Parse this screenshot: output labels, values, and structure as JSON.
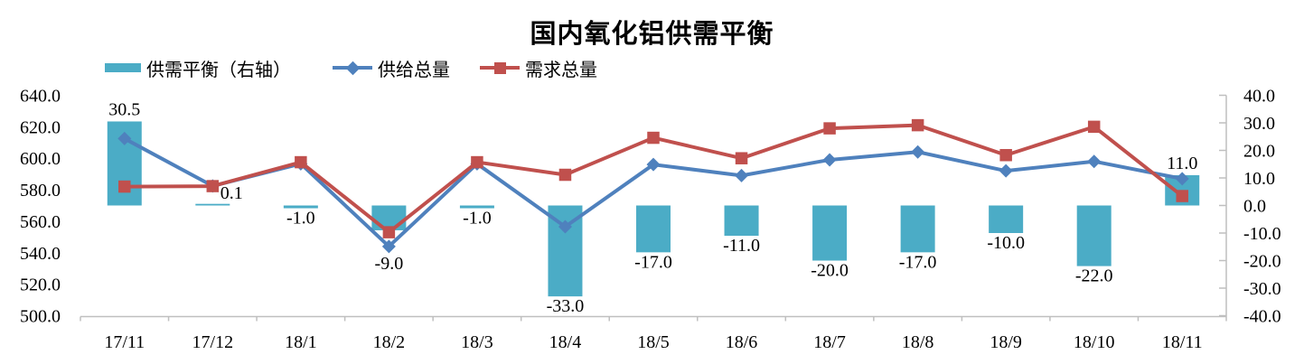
{
  "chart_data": {
    "type": "bar",
    "subtype": "bar+line combo, dual axis",
    "title": "国内氧化铝供需平衡",
    "categories": [
      "17/11",
      "17/12",
      "18/1",
      "18/2",
      "18/3",
      "18/4",
      "18/5",
      "18/6",
      "18/7",
      "18/8",
      "18/9",
      "18/10",
      "18/11"
    ],
    "series": [
      {
        "name": "供需平衡（右轴）",
        "type": "bar",
        "axis": "right",
        "color": "#4BACC6",
        "values": [
          30.5,
          0.1,
          -1.0,
          -9.0,
          -1.0,
          -33.0,
          -17.0,
          -11.0,
          -20.0,
          -17.0,
          -10.0,
          -22.0,
          11.0
        ],
        "labels": [
          "30.5",
          "0.1",
          "-1.0",
          "-9.0",
          "-1.0",
          "-33.0",
          "-17.0",
          "-11.0",
          "-20.0",
          "-17.0",
          "-10.0",
          "-22.0",
          "11.0"
        ]
      },
      {
        "name": "供给总量",
        "type": "line",
        "marker": "diamond",
        "axis": "left",
        "color": "#4F81BD",
        "values": [
          612.5,
          582.4,
          596.5,
          544,
          596.5,
          556.5,
          596,
          589,
          599,
          604,
          592,
          598,
          587
        ]
      },
      {
        "name": "需求总量",
        "type": "line",
        "marker": "square",
        "axis": "left",
        "color": "#C0504D",
        "values": [
          582,
          582.3,
          597.5,
          553,
          597.5,
          589.5,
          613,
          600,
          619,
          621,
          602,
          620,
          576
        ]
      }
    ],
    "left_axis": {
      "min": 500,
      "max": 640,
      "step": 20,
      "ticks": [
        "640.0",
        "620.0",
        "600.0",
        "580.0",
        "560.0",
        "540.0",
        "520.0",
        "500.0"
      ]
    },
    "right_axis": {
      "min": -40,
      "max": 40,
      "step": 10,
      "ticks": [
        "40.0",
        "30.0",
        "20.0",
        "10.0",
        "0.0",
        "-10.0",
        "-20.0",
        "-30.0",
        "-40.0"
      ]
    },
    "grid": false,
    "legend_position": "top-left",
    "axis_color": "#BFBFBF",
    "text_color": "#000000",
    "background": "#FFFFFF"
  }
}
